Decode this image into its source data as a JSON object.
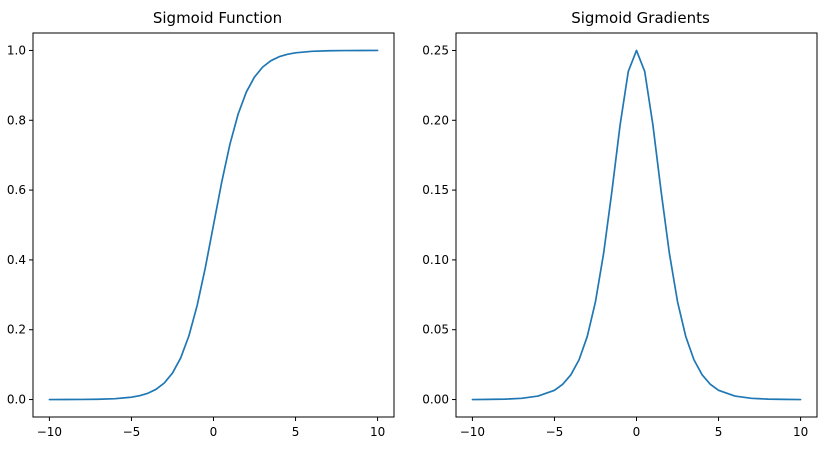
{
  "chart_data": [
    {
      "type": "line",
      "title": "Sigmoid Function",
      "xlabel": "",
      "ylabel": "",
      "xlim": [
        -11,
        11
      ],
      "ylim": [
        -0.05,
        1.05
      ],
      "xticks": [
        -10,
        -5,
        0,
        5,
        10
      ],
      "xtick_labels": [
        "−10",
        "−5",
        "0",
        "5",
        "10"
      ],
      "yticks": [
        0.0,
        0.2,
        0.4,
        0.6,
        0.8,
        1.0
      ],
      "ytick_labels": [
        "0.0",
        "0.2",
        "0.4",
        "0.6",
        "0.8",
        "1.0"
      ],
      "grid": false,
      "line_color": "#1f77b4",
      "series": [
        {
          "x": [
            -10,
            -9,
            -8,
            -7,
            -6,
            -5,
            -4.5,
            -4,
            -3.5,
            -3,
            -2.5,
            -2,
            -1.5,
            -1,
            -0.5,
            0,
            0.5,
            1,
            1.5,
            2,
            2.5,
            3,
            3.5,
            4,
            4.5,
            5,
            6,
            7,
            8,
            9,
            10
          ],
          "values": [
            0.0,
            0.0001,
            0.0003,
            0.0009,
            0.0025,
            0.0067,
            0.011,
            0.018,
            0.0293,
            0.0474,
            0.0759,
            0.1192,
            0.1824,
            0.2689,
            0.3775,
            0.5,
            0.6225,
            0.7311,
            0.8176,
            0.8808,
            0.9241,
            0.9526,
            0.9707,
            0.982,
            0.989,
            0.9933,
            0.9975,
            0.9991,
            0.9997,
            0.9999,
            1.0
          ]
        }
      ]
    },
    {
      "type": "line",
      "title": "Sigmoid Gradients",
      "xlabel": "",
      "ylabel": "",
      "xlim": [
        -11,
        11
      ],
      "ylim": [
        -0.0125,
        0.2625
      ],
      "xticks": [
        -10,
        -5,
        0,
        5,
        10
      ],
      "xtick_labels": [
        "−10",
        "−5",
        "0",
        "5",
        "10"
      ],
      "yticks": [
        0.0,
        0.05,
        0.1,
        0.15,
        0.2,
        0.25
      ],
      "ytick_labels": [
        "0.00",
        "0.05",
        "0.10",
        "0.15",
        "0.20",
        "0.25"
      ],
      "grid": false,
      "line_color": "#1f77b4",
      "series": [
        {
          "x": [
            -10,
            -9,
            -8,
            -7,
            -6,
            -5,
            -4.5,
            -4,
            -3.5,
            -3,
            -2.5,
            -2,
            -1.5,
            -1,
            -0.5,
            0,
            0.5,
            1,
            1.5,
            2,
            2.5,
            3,
            3.5,
            4,
            4.5,
            5,
            6,
            7,
            8,
            9,
            10
          ],
          "values": [
            0.0,
            0.0001,
            0.0003,
            0.0009,
            0.0025,
            0.0066,
            0.0109,
            0.0177,
            0.0285,
            0.0452,
            0.0701,
            0.105,
            0.1491,
            0.1966,
            0.235,
            0.25,
            0.235,
            0.1966,
            0.1491,
            0.105,
            0.0701,
            0.0452,
            0.0285,
            0.0177,
            0.0109,
            0.0066,
            0.0025,
            0.0009,
            0.0003,
            0.0001,
            0.0
          ]
        }
      ]
    }
  ]
}
